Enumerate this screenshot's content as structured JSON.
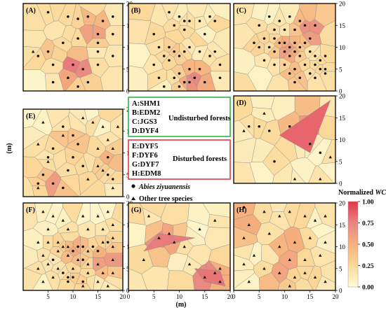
{
  "chart_data": [
    {
      "type": "voronoi",
      "label": "(A)",
      "site": "SHM1",
      "group": "Undisturbed forests",
      "xlim": [
        0,
        20
      ],
      "ylim": [
        0,
        20
      ],
      "y_ticks": [
        "0",
        "5",
        "10",
        "15",
        "20"
      ],
      "abies": [
        [
          5,
          18
        ],
        [
          9,
          17
        ],
        [
          11,
          16.5
        ],
        [
          13,
          17
        ],
        [
          16,
          16
        ],
        [
          18,
          17
        ],
        [
          15,
          13
        ],
        [
          18,
          13
        ],
        [
          11,
          12
        ],
        [
          15,
          11
        ],
        [
          8,
          11
        ],
        [
          5,
          9
        ],
        [
          3,
          8
        ],
        [
          15,
          9
        ],
        [
          18,
          8
        ],
        [
          6,
          6
        ],
        [
          10,
          6
        ],
        [
          12,
          5
        ],
        [
          15,
          6
        ],
        [
          9,
          3
        ],
        [
          13,
          2
        ],
        [
          6,
          2
        ],
        [
          11,
          1
        ]
      ],
      "others": [
        [
          2,
          9
        ]
      ],
      "hot": [
        {
          "x": 14,
          "y": 14.5,
          "w": 0.72
        },
        {
          "x": 10.5,
          "y": 5,
          "w": 0.85
        },
        {
          "x": 5,
          "y": 9,
          "w": 0.38
        },
        {
          "x": 15,
          "y": 6.5,
          "w": 0.22
        },
        {
          "x": 6,
          "y": 15,
          "w": 0.18
        }
      ]
    },
    {
      "type": "voronoi",
      "label": "(B)",
      "site": "EDM2",
      "group": "Undisturbed forests",
      "xlim": [
        0,
        20
      ],
      "ylim": [
        0,
        20
      ],
      "abies": [
        [
          8,
          18
        ],
        [
          10,
          17
        ],
        [
          11,
          16
        ],
        [
          12,
          16
        ],
        [
          9,
          15
        ],
        [
          11,
          14
        ],
        [
          14,
          16
        ],
        [
          16,
          17
        ],
        [
          17,
          16
        ],
        [
          5,
          13
        ],
        [
          15,
          13
        ],
        [
          6,
          10
        ],
        [
          8,
          10
        ],
        [
          9,
          9
        ],
        [
          10,
          8
        ],
        [
          11,
          9
        ],
        [
          12,
          10
        ],
        [
          14,
          9
        ],
        [
          7,
          8
        ],
        [
          8,
          7
        ],
        [
          16,
          8
        ],
        [
          17,
          9
        ],
        [
          18,
          6
        ],
        [
          5,
          6
        ],
        [
          10,
          4
        ],
        [
          12,
          5
        ],
        [
          14,
          5
        ],
        [
          6,
          3
        ],
        [
          9,
          3
        ],
        [
          11,
          2
        ],
        [
          13,
          3
        ],
        [
          15,
          2
        ],
        [
          18,
          3
        ],
        [
          7,
          1
        ],
        [
          10,
          1
        ],
        [
          12,
          2
        ]
      ],
      "others": [],
      "hot": [
        {
          "x": 13,
          "y": 2.5,
          "w": 0.75
        },
        {
          "x": 9,
          "y": 9,
          "w": 0.35
        },
        {
          "x": 12,
          "y": 15,
          "w": 0.22
        },
        {
          "x": 16,
          "y": 8,
          "w": 0.18
        }
      ]
    },
    {
      "type": "voronoi",
      "label": "(C)",
      "site": "JGS3",
      "group": "Undisturbed forests",
      "xlim": [
        0,
        20
      ],
      "ylim": [
        0,
        20
      ],
      "y_ticks": [
        "0",
        "5",
        "10",
        "15",
        "20"
      ],
      "abies": [
        [
          7,
          17
        ],
        [
          9,
          16
        ],
        [
          11,
          17
        ],
        [
          13,
          16
        ],
        [
          5,
          15
        ],
        [
          8,
          14
        ],
        [
          10,
          14
        ],
        [
          12,
          14
        ],
        [
          14,
          15
        ],
        [
          16,
          15
        ],
        [
          6,
          12
        ],
        [
          8,
          12
        ],
        [
          9,
          11
        ],
        [
          10,
          11
        ],
        [
          11,
          10
        ],
        [
          12,
          11
        ],
        [
          13,
          10
        ],
        [
          14,
          11
        ],
        [
          15,
          12
        ],
        [
          4,
          11
        ],
        [
          5,
          10
        ],
        [
          7,
          10
        ],
        [
          8,
          9
        ],
        [
          10,
          9
        ],
        [
          11,
          8
        ],
        [
          12,
          9
        ],
        [
          13,
          8
        ],
        [
          15,
          9
        ],
        [
          16,
          8
        ],
        [
          17,
          7
        ],
        [
          18,
          8
        ],
        [
          17,
          5
        ],
        [
          18,
          4
        ],
        [
          16,
          6
        ],
        [
          14,
          6
        ],
        [
          12,
          5
        ],
        [
          10,
          6
        ],
        [
          8,
          6
        ],
        [
          6,
          7
        ],
        [
          11,
          4
        ],
        [
          13,
          3
        ],
        [
          15,
          4
        ],
        [
          16,
          3
        ],
        [
          18,
          5
        ],
        [
          12,
          2
        ]
      ],
      "others": [],
      "hot": [
        {
          "x": 15,
          "y": 14,
          "w": 0.78
        },
        {
          "x": 10.5,
          "y": 9.5,
          "w": 0.62
        },
        {
          "x": 12,
          "y": 4,
          "w": 0.45
        },
        {
          "x": 5,
          "y": 11,
          "w": 0.3
        },
        {
          "x": 17,
          "y": 6,
          "w": 0.25
        }
      ]
    },
    {
      "type": "voronoi",
      "label": "(D)",
      "site": "DYF4",
      "group": "Undisturbed forests",
      "xlim": [
        0,
        20
      ],
      "ylim": [
        0,
        20
      ],
      "y_ticks": [
        "0",
        "5",
        "10",
        "15",
        "20"
      ],
      "abies": [
        [
          3,
          13
        ],
        [
          5,
          13
        ],
        [
          11,
          13
        ],
        [
          15,
          9
        ],
        [
          17,
          7
        ],
        [
          8,
          5
        ],
        [
          7,
          12
        ]
      ],
      "others": [
        [
          6,
          16
        ],
        [
          2,
          12
        ],
        [
          12,
          1
        ],
        [
          17,
          1
        ],
        [
          19,
          6
        ]
      ],
      "hot": [
        {
          "x": 13.5,
          "y": 14.5,
          "w": 0.85,
          "poly": [
            [
              9,
              11
            ],
            [
              19,
              19
            ],
            [
              15,
              7
            ]
          ]
        }
      ]
    },
    {
      "type": "voronoi",
      "label": "(E)",
      "site": "DYF5",
      "group": "Disturbed forests",
      "xlim": [
        0,
        20
      ],
      "ylim": [
        0,
        20
      ],
      "y_ticks": [
        "0",
        "5",
        "10",
        "15",
        "20"
      ],
      "abies": [
        [
          8,
          16
        ],
        [
          10,
          14
        ],
        [
          11,
          12
        ],
        [
          6,
          11
        ],
        [
          10,
          9
        ],
        [
          17,
          9
        ],
        [
          5,
          9
        ],
        [
          9,
          6
        ],
        [
          12,
          7
        ],
        [
          17,
          5
        ],
        [
          18,
          4
        ],
        [
          4,
          5
        ],
        [
          6,
          3
        ],
        [
          3,
          3
        ],
        [
          8,
          2
        ]
      ],
      "others": [
        [
          4,
          17
        ],
        [
          12,
          18
        ],
        [
          8,
          14
        ],
        [
          14,
          17
        ],
        [
          16,
          16
        ],
        [
          19,
          16
        ],
        [
          17,
          13
        ],
        [
          15,
          11
        ],
        [
          18,
          11
        ],
        [
          3,
          12
        ],
        [
          5,
          8
        ],
        [
          15,
          7
        ],
        [
          16,
          6
        ],
        [
          13,
          4
        ],
        [
          3,
          2
        ],
        [
          18,
          2
        ]
      ],
      "hot": [
        {
          "x": 9,
          "y": 12,
          "w": 0.52
        },
        {
          "x": 17,
          "y": 8.5,
          "w": 0.5
        },
        {
          "x": 6,
          "y": 3.5,
          "w": 0.62
        },
        {
          "x": 4,
          "y": 6,
          "w": 0.3
        },
        {
          "x": 12,
          "y": 6,
          "w": 0.25
        }
      ]
    },
    {
      "type": "voronoi",
      "label": "(F)",
      "site": "DYF6",
      "group": "Disturbed forests",
      "xlim": [
        0,
        20
      ],
      "ylim": [
        0,
        20
      ],
      "y_ticks": [
        "0",
        "5",
        "10",
        "15",
        "20"
      ],
      "x_ticks": [
        "5",
        "10",
        "15",
        "20"
      ],
      "abies": [
        [
          10,
          9
        ],
        [
          11,
          10
        ],
        [
          12,
          10
        ],
        [
          14,
          10
        ],
        [
          8,
          4
        ],
        [
          9,
          3
        ],
        [
          10,
          3
        ],
        [
          12,
          2
        ],
        [
          9,
          2
        ],
        [
          6,
          7
        ],
        [
          12,
          7
        ],
        [
          15,
          9
        ],
        [
          17,
          11
        ]
      ],
      "others": [
        [
          4,
          18
        ],
        [
          6,
          17
        ],
        [
          8,
          16
        ],
        [
          12,
          17
        ],
        [
          15,
          17
        ],
        [
          17,
          18
        ],
        [
          5,
          14
        ],
        [
          9,
          14
        ],
        [
          13,
          14
        ],
        [
          16,
          14
        ],
        [
          18,
          15
        ],
        [
          3,
          11
        ],
        [
          5,
          11
        ],
        [
          7,
          11
        ],
        [
          8,
          10
        ],
        [
          9,
          10
        ],
        [
          13,
          9
        ],
        [
          16,
          11
        ],
        [
          18,
          12
        ],
        [
          18,
          10
        ],
        [
          4,
          8
        ],
        [
          7,
          9
        ],
        [
          9,
          8
        ],
        [
          11,
          7
        ],
        [
          13,
          6
        ],
        [
          15,
          6
        ],
        [
          18,
          7
        ],
        [
          3,
          5
        ],
        [
          5,
          6
        ],
        [
          7,
          5
        ],
        [
          10,
          5
        ],
        [
          13,
          4
        ],
        [
          16,
          4
        ],
        [
          18,
          4
        ],
        [
          4,
          2
        ],
        [
          6,
          3
        ],
        [
          12,
          1
        ],
        [
          15,
          2
        ],
        [
          17,
          1
        ]
      ],
      "hot": [
        {
          "x": 16.5,
          "y": 7,
          "w": 0.75
        },
        {
          "x": 10.5,
          "y": 9,
          "w": 0.55
        },
        {
          "x": 7,
          "y": 10,
          "w": 0.3
        },
        {
          "x": 11,
          "y": 3,
          "w": 0.35
        },
        {
          "x": 15,
          "y": 12,
          "w": 0.22
        }
      ]
    },
    {
      "type": "voronoi",
      "label": "(G)",
      "site": "DYF7",
      "group": "Disturbed forests",
      "xlim": [
        0,
        20
      ],
      "ylim": [
        0,
        20
      ],
      "x_ticks": [
        "0",
        "5",
        "10",
        "15",
        "20"
      ],
      "abies": [],
      "others": [
        [
          4,
          17
        ],
        [
          6,
          12
        ],
        [
          9,
          11
        ],
        [
          8,
          13
        ],
        [
          11,
          10
        ],
        [
          3,
          7
        ],
        [
          12,
          6
        ],
        [
          14,
          14
        ],
        [
          17,
          16
        ],
        [
          18,
          5
        ],
        [
          17,
          4
        ],
        [
          15,
          3
        ],
        [
          18,
          2
        ]
      ],
      "hot": [
        {
          "x": 7,
          "y": 11,
          "w": 0.78,
          "poly": [
            [
              3,
              9
            ],
            [
              13,
              12
            ],
            [
              6,
              13
            ]
          ]
        },
        {
          "x": 16,
          "y": 3.5,
          "w": 0.8,
          "poly": [
            [
              13,
              5
            ],
            [
              18,
              4.5
            ],
            [
              19,
              1
            ],
            [
              15,
              2
            ]
          ]
        }
      ]
    },
    {
      "type": "voronoi",
      "label": "(H)",
      "site": "EDM8",
      "group": "Disturbed forests",
      "xlim": [
        0,
        20
      ],
      "ylim": [
        0,
        20
      ],
      "y_ticks": [
        "0",
        "5",
        "10",
        "15",
        "20"
      ],
      "x_ticks": [
        "0",
        "5",
        "10",
        "15",
        "20"
      ],
      "abies": [
        [
          2,
          19
        ]
      ],
      "others": [
        [
          3,
          15
        ],
        [
          6,
          18
        ],
        [
          9,
          17
        ],
        [
          11,
          18
        ],
        [
          14,
          17
        ],
        [
          16,
          16
        ],
        [
          18,
          17
        ],
        [
          2,
          12
        ],
        [
          7,
          13
        ],
        [
          9,
          10
        ],
        [
          12,
          11
        ],
        [
          15,
          12
        ],
        [
          18,
          11
        ],
        [
          4,
          8
        ],
        [
          11,
          7
        ],
        [
          14,
          7
        ],
        [
          17,
          8
        ],
        [
          2,
          6
        ],
        [
          6,
          5
        ],
        [
          9,
          4
        ],
        [
          12,
          3
        ],
        [
          14,
          4
        ],
        [
          16,
          3
        ],
        [
          18,
          2
        ],
        [
          3,
          2
        ],
        [
          11,
          1
        ]
      ],
      "hot": [
        {
          "x": 11,
          "y": 9,
          "w": 0.7
        },
        {
          "x": 3,
          "y": 14,
          "w": 0.55
        },
        {
          "x": 9,
          "y": 3,
          "w": 0.6
        },
        {
          "x": 2,
          "y": 19,
          "w": 0.5
        },
        {
          "x": 15,
          "y": 3,
          "w": 0.3
        }
      ]
    }
  ],
  "axes": {
    "y_label": "(m)",
    "x_label": "(m)"
  },
  "legend": {
    "undisturbed": {
      "items": [
        "A:SHM1",
        "B:EDM2",
        "C:JGS3",
        "D:DYF4"
      ],
      "label": "Undisturbed forests",
      "color": "#2db34a"
    },
    "disturbed": {
      "items": [
        "E:DYF5",
        "F:DYF6",
        "G:DYF7",
        "H:EDM8"
      ],
      "label": "Disturbed forests",
      "color": "#e0383f"
    },
    "abies_label": "Abies ziyuanensis",
    "others_label": "Other tree species"
  },
  "colorbar": {
    "title_prefix": "Normalized ",
    "title_var": "WCI",
    "ticks": [
      "1.00",
      "0.75",
      "0.50",
      "0.25",
      "0.00"
    ],
    "colors": [
      "#fdfbd4",
      "#fbd99a",
      "#f5b07d",
      "#e88583",
      "#e5344a"
    ]
  }
}
